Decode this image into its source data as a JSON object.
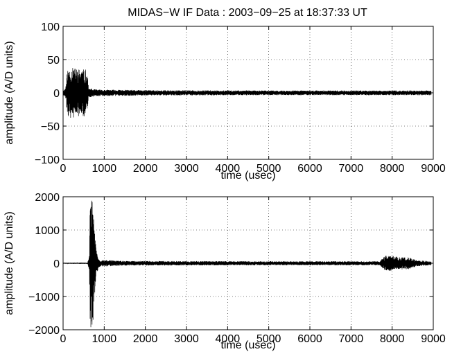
{
  "figure_title": "MIDAS−W IF Data : 2003−09−25 at 18:37:33 UT",
  "chart_data": [
    {
      "type": "line",
      "title": "MIDAS−W IF Data : 2003−09−25 at 18:37:33 UT",
      "xlabel": "time (usec)",
      "ylabel": "amplitude (A/D units)",
      "xlim": [
        0,
        9000
      ],
      "ylim": [
        -100,
        100
      ],
      "x_ticks": [
        0,
        1000,
        2000,
        3000,
        4000,
        5000,
        6000,
        7000,
        8000,
        9000
      ],
      "x_tick_labels": [
        "0",
        "1000",
        "2000",
        "3000",
        "4000",
        "5000",
        "6000",
        "7000",
        "8000",
        "9000"
      ],
      "y_ticks": [
        -100,
        -50,
        0,
        50,
        100
      ],
      "y_tick_labels": [
        "−100",
        "−50",
        "0",
        "50",
        "100"
      ],
      "grid": true,
      "color": "#000000",
      "envelope": [
        {
          "x": 0,
          "amp": 3
        },
        {
          "x": 60,
          "amp": 8
        },
        {
          "x": 110,
          "amp": 36
        },
        {
          "x": 200,
          "amp": 38
        },
        {
          "x": 350,
          "amp": 37
        },
        {
          "x": 450,
          "amp": 36
        },
        {
          "x": 550,
          "amp": 35
        },
        {
          "x": 590,
          "amp": 30
        },
        {
          "x": 620,
          "amp": 7
        },
        {
          "x": 800,
          "amp": 5
        },
        {
          "x": 2000,
          "amp": 4
        },
        {
          "x": 5000,
          "amp": 3.5
        },
        {
          "x": 8000,
          "amp": 3.5
        },
        {
          "x": 8950,
          "amp": 3.5
        }
      ]
    },
    {
      "type": "line",
      "xlabel": "time (usec)",
      "ylabel": "amplitude (A/D units)",
      "xlim": [
        0,
        9000
      ],
      "ylim": [
        -2000,
        2000
      ],
      "x_ticks": [
        0,
        1000,
        2000,
        3000,
        4000,
        5000,
        6000,
        7000,
        8000,
        9000
      ],
      "x_tick_labels": [
        "0",
        "1000",
        "2000",
        "3000",
        "4000",
        "5000",
        "6000",
        "7000",
        "8000",
        "9000"
      ],
      "y_ticks": [
        -2000,
        -1000,
        0,
        1000,
        2000
      ],
      "y_tick_labels": [
        "−2000",
        "−1000",
        "0",
        "1000",
        "2000"
      ],
      "grid": true,
      "color": "#000000",
      "envelope": [
        {
          "x": 0,
          "amp": 15
        },
        {
          "x": 600,
          "amp": 20
        },
        {
          "x": 640,
          "amp": 300
        },
        {
          "x": 660,
          "amp": 2000
        },
        {
          "x": 720,
          "amp": 1900
        },
        {
          "x": 770,
          "amp": 900
        },
        {
          "x": 820,
          "amp": 300
        },
        {
          "x": 900,
          "amp": 100
        },
        {
          "x": 1500,
          "amp": 70
        },
        {
          "x": 5000,
          "amp": 60
        },
        {
          "x": 7700,
          "amp": 60
        },
        {
          "x": 7850,
          "amp": 250
        },
        {
          "x": 8100,
          "amp": 200
        },
        {
          "x": 8400,
          "amp": 180
        },
        {
          "x": 8600,
          "amp": 90
        },
        {
          "x": 8950,
          "amp": 60
        }
      ]
    }
  ]
}
